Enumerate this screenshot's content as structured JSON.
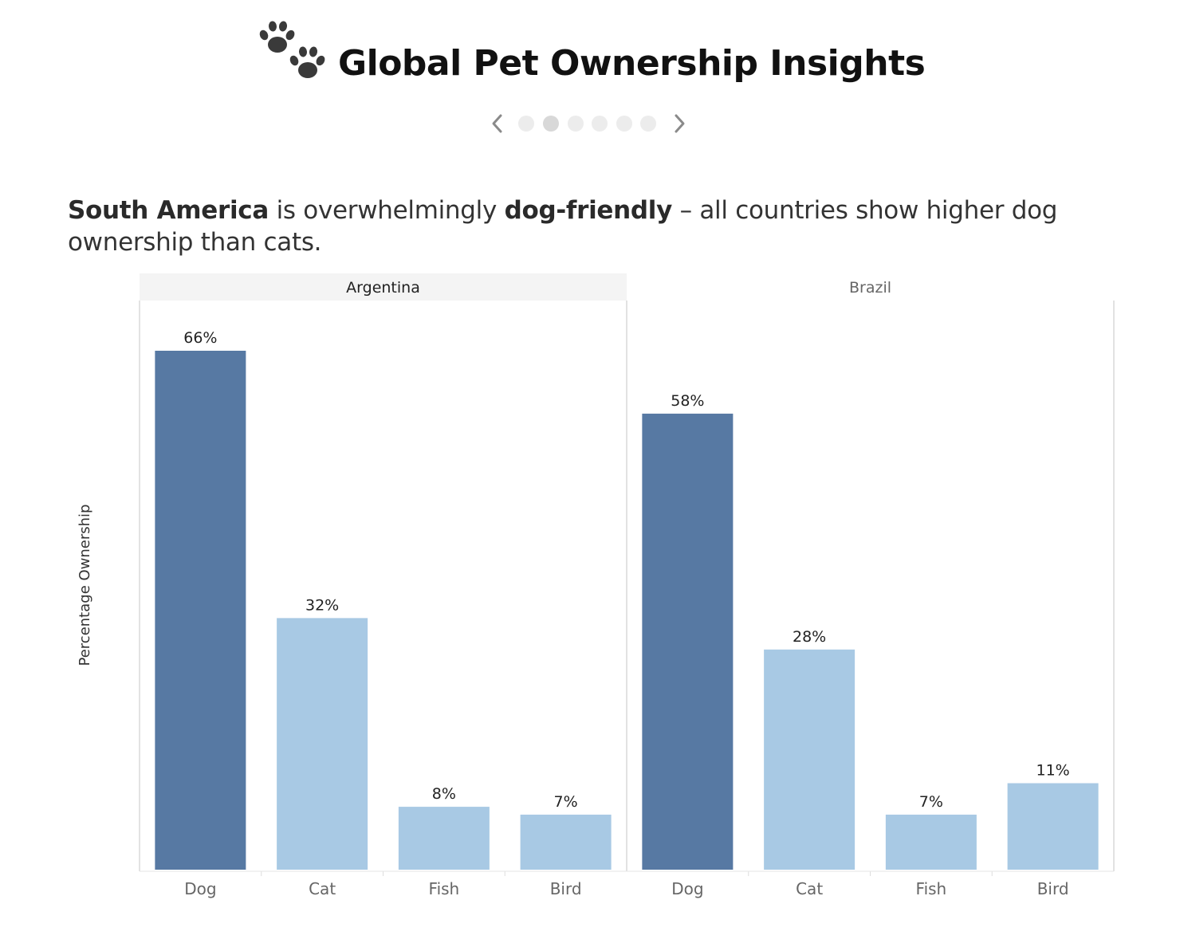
{
  "header": {
    "title": "Global Pet Ownership Insights",
    "icon": "paw-prints-icon"
  },
  "pager": {
    "dot_count": 6,
    "active_index": 1
  },
  "caption": {
    "part1": "South America",
    "part2": " is overwhelmingly ",
    "part3": "dog-friendly",
    "part4": " – all countries show higher dog ownership than cats."
  },
  "chart_data": {
    "type": "bar",
    "ylabel": "Percentage Ownership",
    "ylim": [
      0,
      70
    ],
    "grid": false,
    "categories": [
      "Dog",
      "Cat",
      "Fish",
      "Bird"
    ],
    "colors": {
      "dog": "#5779a3",
      "other": "#a8c9e4"
    },
    "panels": [
      {
        "name": "Argentina",
        "values": [
          66,
          32,
          8,
          7
        ],
        "labels": [
          "66%",
          "32%",
          "8%",
          "7%"
        ],
        "highlighted": true
      },
      {
        "name": "Brazil",
        "values": [
          58,
          28,
          7,
          11
        ],
        "labels": [
          "58%",
          "28%",
          "7%",
          "11%"
        ],
        "highlighted": false
      }
    ]
  }
}
